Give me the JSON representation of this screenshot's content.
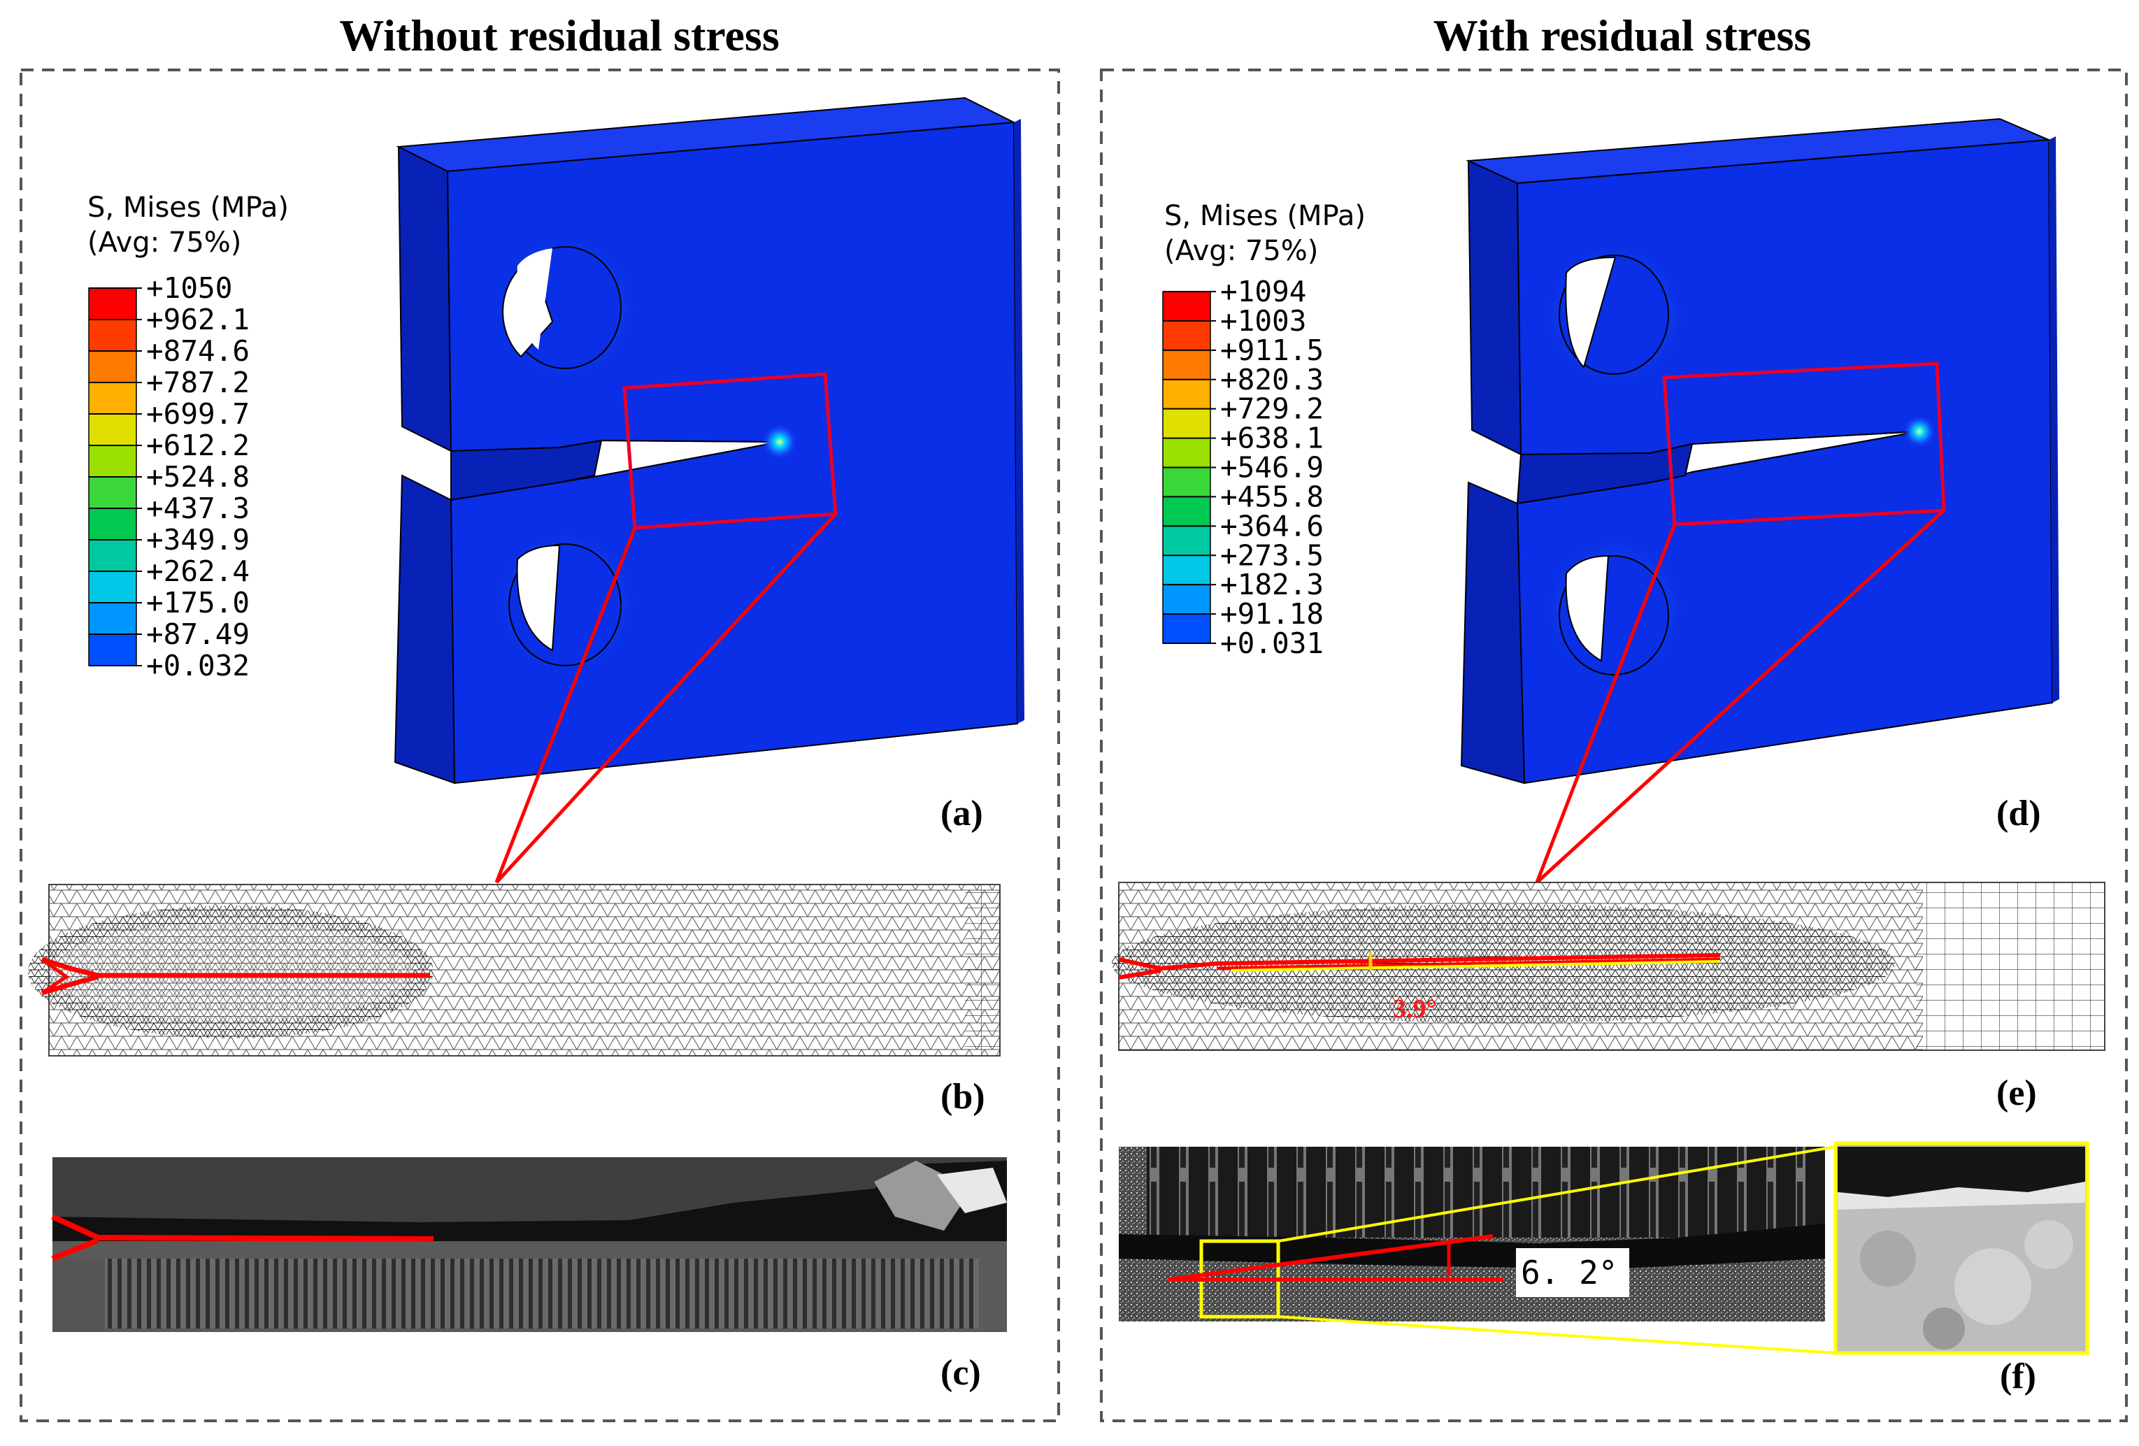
{
  "titles": {
    "left": "Without residual stress",
    "right": "With residual stress"
  },
  "legend_left": {
    "title_line1": "S, Mises (MPa)",
    "title_line2": "(Avg: 75%)",
    "ticks": [
      "+1050",
      "+962.1",
      "+874.6",
      "+787.2",
      "+699.7",
      "+612.2",
      "+524.8",
      "+437.3",
      "+349.9",
      "+262.4",
      "+175.0",
      "+87.49",
      "+0.032"
    ]
  },
  "legend_right": {
    "title_line1": "S, Mises (MPa)",
    "title_line2": "(Avg: 75%)",
    "ticks": [
      "+1094",
      "+1003",
      "+911.5",
      "+820.3",
      "+729.2",
      "+638.1",
      "+546.9",
      "+455.8",
      "+364.6",
      "+273.5",
      "+182.3",
      "+91.18",
      "+0.031"
    ]
  },
  "colorbar_colors": [
    "#ff0000",
    "#ff3c00",
    "#ff7a00",
    "#ffb000",
    "#e0e000",
    "#9be000",
    "#3ad63a",
    "#00c850",
    "#00c8a0",
    "#00c8e6",
    "#0096ff",
    "#0050ff",
    "#0010e0"
  ],
  "panel_labels": {
    "a": "(a)",
    "b": "(b)",
    "c": "(c)",
    "d": "(d)",
    "e": "(e)",
    "f": "(f)"
  },
  "angles": {
    "simulated": "3.9°",
    "experimental": "6. 2°"
  },
  "colors": {
    "specimen": "#0a2fe6",
    "specimen_top": "#1a3df0",
    "specimen_side": "#0822b8",
    "crack_line": "#ff0000",
    "zoom_box": "#e8002a",
    "inset_box": "#ffff00"
  }
}
